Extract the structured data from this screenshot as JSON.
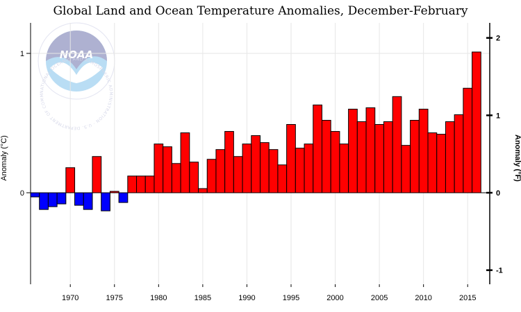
{
  "chart_data": {
    "type": "bar",
    "title": "Global Land and Ocean Temperature Anomalies, December-February",
    "ylabel": "Anomaly (°C)",
    "ylabel_right": "Anomaly (°F)",
    "xlabel": "",
    "ylim": [
      -0.6,
      1.2
    ],
    "xlim": [
      1966,
      2017
    ],
    "grid": true,
    "y_ticks": [
      0,
      1
    ],
    "y_ticks_right": [
      -1,
      0,
      1,
      2
    ],
    "x_ticks": [
      1970,
      1975,
      1980,
      1985,
      1990,
      1995,
      2000,
      2005,
      2010,
      2015
    ],
    "positive_color": "#ff0000",
    "negative_color": "#0000ff",
    "x": [
      1966,
      1967,
      1968,
      1969,
      1970,
      1971,
      1972,
      1973,
      1974,
      1975,
      1976,
      1977,
      1978,
      1979,
      1980,
      1981,
      1982,
      1983,
      1984,
      1985,
      1986,
      1987,
      1988,
      1989,
      1990,
      1991,
      1992,
      1993,
      1994,
      1995,
      1996,
      1997,
      1998,
      1999,
      2000,
      2001,
      2002,
      2003,
      2004,
      2005,
      2006,
      2007,
      2008,
      2009,
      2010,
      2011,
      2012,
      2013,
      2014,
      2015,
      2016
    ],
    "values": [
      -0.03,
      -0.12,
      -0.1,
      -0.08,
      0.18,
      -0.09,
      -0.12,
      0.26,
      -0.13,
      0.01,
      -0.07,
      0.12,
      0.12,
      0.12,
      0.35,
      0.33,
      0.21,
      0.43,
      0.22,
      0.03,
      0.24,
      0.31,
      0.44,
      0.26,
      0.35,
      0.41,
      0.36,
      0.31,
      0.2,
      0.49,
      0.32,
      0.35,
      0.63,
      0.52,
      0.44,
      0.35,
      0.6,
      0.51,
      0.61,
      0.49,
      0.51,
      0.69,
      0.34,
      0.52,
      0.6,
      0.43,
      0.42,
      0.51,
      0.56,
      0.75,
      1.01
    ]
  },
  "logo": {
    "mark": "NOAA",
    "ring_text": "NATIONAL OCEANIC AND ATMOSPHERIC ADMINISTRATION · U.S. DEPARTMENT OF COMMERCE ·"
  }
}
